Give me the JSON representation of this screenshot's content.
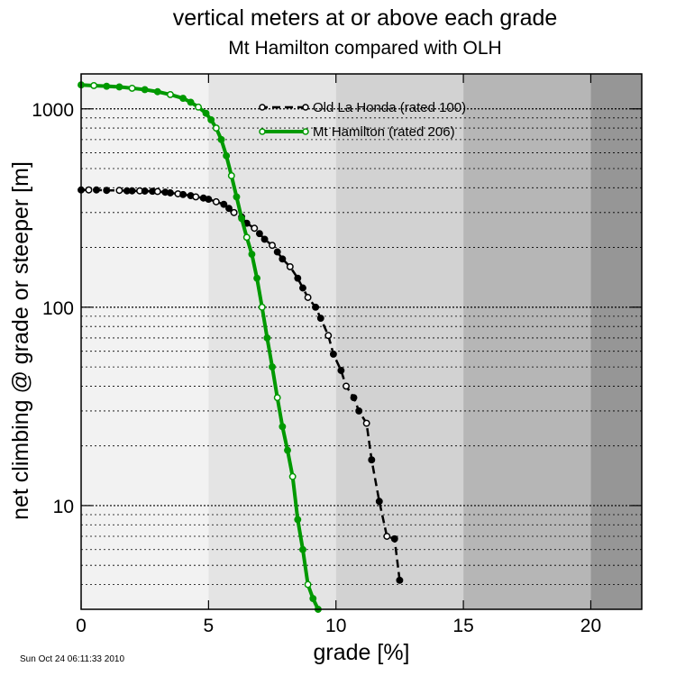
{
  "chart_data": {
    "type": "line",
    "title": "vertical meters at or above each grade",
    "subtitle": "Mt Hamilton compared with OLH",
    "xlabel": "grade [%]",
    "ylabel": "net climbing @ grade or steeper [m]",
    "xlim": [
      0,
      22
    ],
    "ylim": [
      3,
      1500
    ],
    "yscale": "log",
    "x_ticks": [
      0,
      5,
      10,
      15,
      20
    ],
    "x_tick_labels": [
      "0",
      "5",
      "10",
      "15",
      "20"
    ],
    "y_ticks": [
      10,
      100,
      1000
    ],
    "y_tick_labels": [
      "10",
      "100",
      "1000"
    ],
    "background_bands": [
      {
        "from": 0,
        "to": 5,
        "color": "#f2f2f2"
      },
      {
        "from": 5,
        "to": 10,
        "color": "#e4e4e4"
      },
      {
        "from": 10,
        "to": 15,
        "color": "#d2d2d2"
      },
      {
        "from": 15,
        "to": 20,
        "color": "#b6b6b6"
      },
      {
        "from": 20,
        "to": 22,
        "color": "#969696"
      }
    ],
    "grid": "horizontal dotted at each log decade step",
    "legend_position": "top-right",
    "series": [
      {
        "name": "Old La Honda (rated 100)",
        "color": "#000000",
        "line_style": "dashed",
        "x": [
          0,
          0.3,
          0.6,
          1.0,
          1.5,
          1.8,
          2.0,
          2.3,
          2.5,
          2.8,
          3.0,
          3.3,
          3.5,
          3.8,
          4.0,
          4.3,
          4.5,
          4.8,
          5.0,
          5.3,
          5.6,
          5.8,
          6.0,
          6.3,
          6.5,
          6.8,
          7.0,
          7.2,
          7.5,
          7.7,
          7.9,
          8.2,
          8.5,
          8.7,
          8.9,
          9.2,
          9.4,
          9.7,
          9.9,
          10.2,
          10.4,
          10.7,
          10.9,
          11.2,
          11.4,
          11.7,
          12.0,
          12.3,
          12.5
        ],
        "y": [
          390,
          390,
          390,
          388,
          388,
          386,
          386,
          386,
          385,
          384,
          383,
          380,
          377,
          373,
          370,
          365,
          360,
          355,
          350,
          340,
          330,
          315,
          300,
          285,
          265,
          250,
          235,
          220,
          205,
          190,
          175,
          160,
          140,
          125,
          112,
          100,
          88,
          72,
          58,
          48,
          40,
          35,
          30,
          26,
          17,
          10.5,
          7,
          6.8,
          4.2
        ]
      },
      {
        "name": "Mt Hamilton (rated 206)",
        "color": "#009900",
        "line_style": "solid",
        "x": [
          0,
          0.5,
          1.0,
          1.5,
          2.0,
          2.5,
          3.0,
          3.5,
          4.0,
          4.3,
          4.6,
          4.9,
          5.1,
          5.3,
          5.5,
          5.7,
          5.9,
          6.1,
          6.3,
          6.5,
          6.7,
          6.9,
          7.1,
          7.3,
          7.5,
          7.7,
          7.9,
          8.1,
          8.3,
          8.5,
          8.7,
          8.9,
          9.1,
          9.3
        ],
        "y": [
          1320,
          1310,
          1300,
          1290,
          1270,
          1250,
          1220,
          1180,
          1130,
          1080,
          1020,
          950,
          880,
          800,
          700,
          580,
          460,
          360,
          280,
          225,
          185,
          140,
          100,
          70,
          50,
          35,
          25,
          19,
          14,
          8.5,
          6,
          4,
          3.4,
          3.0
        ]
      }
    ]
  },
  "footer": {
    "timestamp": "Sun Oct 24 06:11:33 2010"
  }
}
